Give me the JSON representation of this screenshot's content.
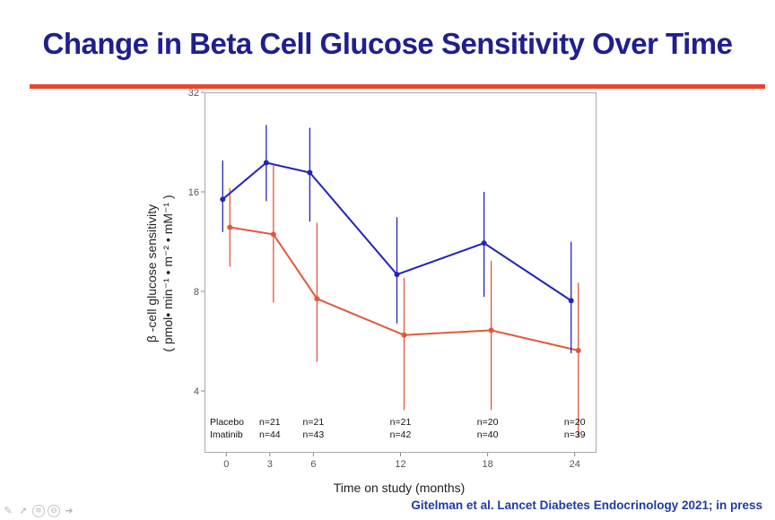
{
  "slide": {
    "title": "Change in Beta Cell Glucose Sensitivity Over Time",
    "citation": "Gitelman et al.  Lancet Diabetes Endocrinology 2021; in press"
  },
  "colors": {
    "title": "#1f1f8f",
    "rule": "#e8452c",
    "placebo": "#2424b8",
    "imatinib": "#e0593a"
  },
  "toolbar": {
    "icons": [
      "pen-icon",
      "pointer-icon",
      "menu-icon",
      "zoom-icon",
      "next-arrow-icon"
    ]
  },
  "chart_data": {
    "type": "line",
    "title": "",
    "xlabel": "Time on study (months)",
    "ylabel_line1": "β -cell glucose sensitivity",
    "ylabel_line2": "( pmol• min⁻¹ • m⁻² • mM⁻¹ )",
    "y_scale": "log2",
    "ylim": [
      2.6,
      32
    ],
    "xlim": [
      -1.5,
      25.5
    ],
    "yticks": [
      4,
      8,
      16,
      32
    ],
    "xticks": [
      0,
      3,
      6,
      12,
      18,
      24
    ],
    "grid": false,
    "legend": "none",
    "series": [
      {
        "name": "Placebo",
        "color": "#2424b8",
        "x": [
          0,
          3,
          6,
          12,
          18,
          24
        ],
        "y": [
          15.2,
          19.6,
          18.3,
          9.0,
          11.2,
          7.5
        ],
        "y_low": [
          12.1,
          15.0,
          13.0,
          6.4,
          7.7,
          5.2
        ],
        "y_high": [
          19.9,
          25.5,
          25.0,
          13.4,
          16.0,
          11.3
        ]
      },
      {
        "name": "Imatinib",
        "color": "#e0593a",
        "x": [
          0,
          3,
          6,
          12,
          18,
          24
        ],
        "y": [
          12.5,
          11.9,
          7.6,
          5.9,
          6.1,
          5.3
        ],
        "y_low": [
          9.5,
          7.4,
          4.9,
          3.5,
          3.5,
          2.9
        ],
        "y_high": [
          16.4,
          19.2,
          12.9,
          8.8,
          9.9,
          8.5
        ]
      }
    ],
    "n_table": {
      "rows": [
        {
          "label": "Placebo",
          "values": [
            "n=21",
            "n=21",
            "n=21",
            "n=20",
            "n=20"
          ]
        },
        {
          "label": "Imatinib",
          "values": [
            "n=44",
            "n=43",
            "n=42",
            "n=40",
            "n=39"
          ]
        }
      ],
      "x": [
        3,
        6,
        12,
        18,
        24
      ]
    }
  }
}
